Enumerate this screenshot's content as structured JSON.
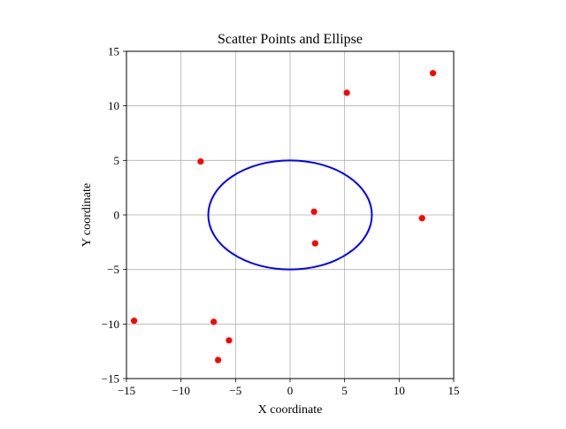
{
  "chart_data": {
    "type": "scatter",
    "title": "Scatter Points and Ellipse",
    "xlabel": "X coordinate",
    "ylabel": "Y coordinate",
    "xlim": [
      -15,
      15
    ],
    "ylim": [
      -15,
      15
    ],
    "xticks": [
      -15,
      -10,
      -5,
      0,
      5,
      10,
      15
    ],
    "yticks": [
      -15,
      -10,
      -5,
      0,
      5,
      10,
      15
    ],
    "xtick_labels": [
      "−15",
      "−10",
      "−5",
      "0",
      "5",
      "10",
      "15"
    ],
    "ytick_labels": [
      "−15",
      "−10",
      "−5",
      "0",
      "5",
      "10",
      "15"
    ],
    "grid": true,
    "series": [
      {
        "kind": "points",
        "color": "#ff0000",
        "points": [
          {
            "x": 5.2,
            "y": 11.2
          },
          {
            "x": 13.1,
            "y": 13.0
          },
          {
            "x": -8.2,
            "y": 4.9
          },
          {
            "x": 2.2,
            "y": 0.3
          },
          {
            "x": 12.1,
            "y": -0.3
          },
          {
            "x": 2.3,
            "y": -2.6
          },
          {
            "x": -14.3,
            "y": -9.7
          },
          {
            "x": -7.0,
            "y": -9.8
          },
          {
            "x": -5.6,
            "y": -11.5
          },
          {
            "x": -6.6,
            "y": -13.3
          }
        ]
      },
      {
        "kind": "ellipse",
        "color": "#0000ff",
        "center": [
          0,
          0
        ],
        "semi_axis_x": 7.5,
        "semi_axis_y": 5.0
      }
    ]
  }
}
